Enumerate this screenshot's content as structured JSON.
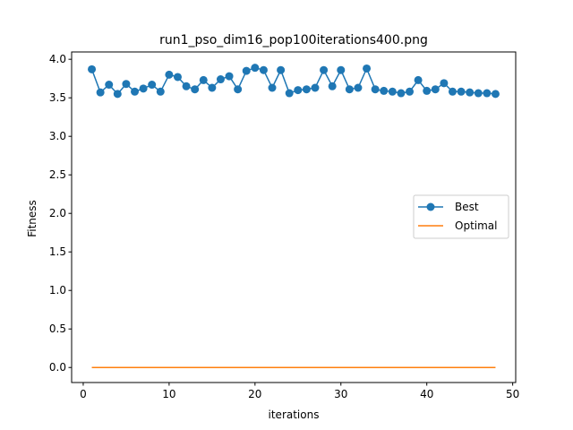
{
  "chart_data": {
    "type": "line",
    "title": "run1_pso_dim16_pop100iterations400.png",
    "xlabel": "iterations",
    "ylabel": "Fitness",
    "xlim": [
      -1.35,
      50.35
    ],
    "ylim": [
      -0.195,
      4.095
    ],
    "xticks": [
      0,
      10,
      20,
      30,
      40,
      50
    ],
    "yticks": [
      0.0,
      0.5,
      1.0,
      1.5,
      2.0,
      2.5,
      3.0,
      3.5,
      4.0
    ],
    "x": [
      1,
      2,
      3,
      4,
      5,
      6,
      7,
      8,
      9,
      10,
      11,
      12,
      13,
      14,
      15,
      16,
      17,
      18,
      19,
      20,
      21,
      22,
      23,
      24,
      25,
      26,
      27,
      28,
      29,
      30,
      31,
      32,
      33,
      34,
      35,
      36,
      37,
      38,
      39,
      40,
      41,
      42,
      43,
      44,
      45,
      46,
      47,
      48
    ],
    "series": [
      {
        "name": "Best",
        "color": "#1f77b4",
        "marker": "circle",
        "values": [
          3.87,
          3.57,
          3.67,
          3.55,
          3.68,
          3.58,
          3.62,
          3.67,
          3.58,
          3.8,
          3.77,
          3.65,
          3.61,
          3.73,
          3.63,
          3.74,
          3.78,
          3.61,
          3.85,
          3.89,
          3.86,
          3.63,
          3.86,
          3.56,
          3.6,
          3.61,
          3.63,
          3.86,
          3.65,
          3.86,
          3.61,
          3.63,
          3.88,
          3.61,
          3.59,
          3.58,
          3.56,
          3.58,
          3.73,
          3.59,
          3.61,
          3.69,
          3.58,
          3.58,
          3.57,
          3.56,
          3.56,
          3.55
        ]
      },
      {
        "name": "Optimal",
        "color": "#ff7f0e",
        "marker": "none",
        "values": [
          0,
          0,
          0,
          0,
          0,
          0,
          0,
          0,
          0,
          0,
          0,
          0,
          0,
          0,
          0,
          0,
          0,
          0,
          0,
          0,
          0,
          0,
          0,
          0,
          0,
          0,
          0,
          0,
          0,
          0,
          0,
          0,
          0,
          0,
          0,
          0,
          0,
          0,
          0,
          0,
          0,
          0,
          0,
          0,
          0,
          0,
          0,
          0
        ]
      }
    ],
    "grid": false,
    "legend_position": "center-right"
  }
}
